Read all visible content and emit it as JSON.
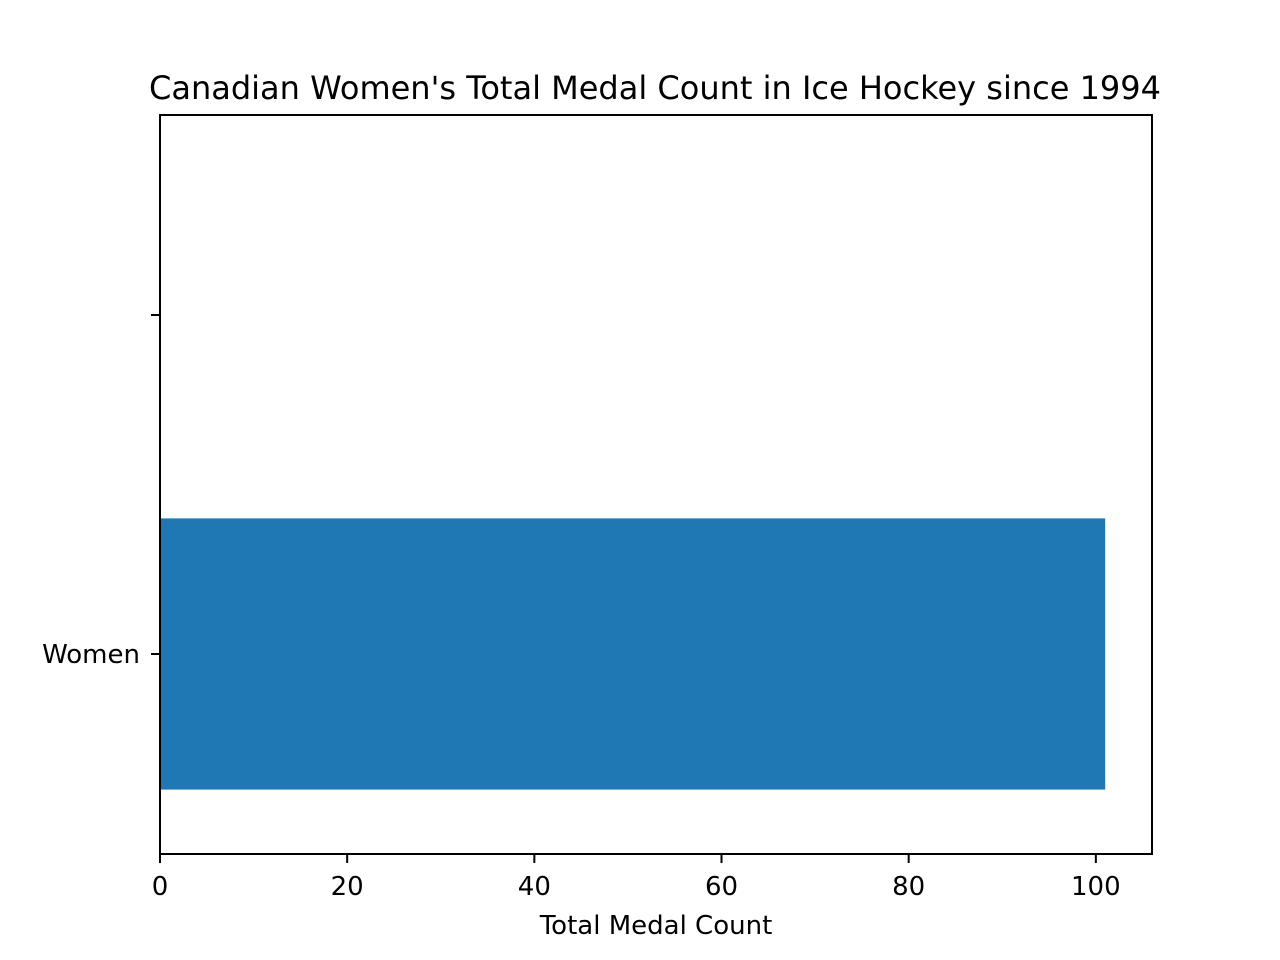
{
  "chart_data": {
    "type": "bar",
    "orientation": "horizontal",
    "title": "Canadian Women's Total Medal Count in Ice Hockey since 1994",
    "xlabel": "Total Medal Count",
    "ylabel": "",
    "categories": [
      "Women",
      ""
    ],
    "values": [
      101,
      0
    ],
    "xlim": [
      0,
      106
    ],
    "xticks": [
      0,
      20,
      40,
      60,
      80,
      100
    ],
    "xtick_labels": [
      "0",
      "20",
      "40",
      "60",
      "80",
      "100"
    ],
    "ytick_labels": [
      "Women",
      ""
    ],
    "grid": false,
    "legend": "none",
    "colors": {
      "bar": "#1f77b4",
      "axes": "#000000",
      "background": "#ffffff"
    }
  }
}
